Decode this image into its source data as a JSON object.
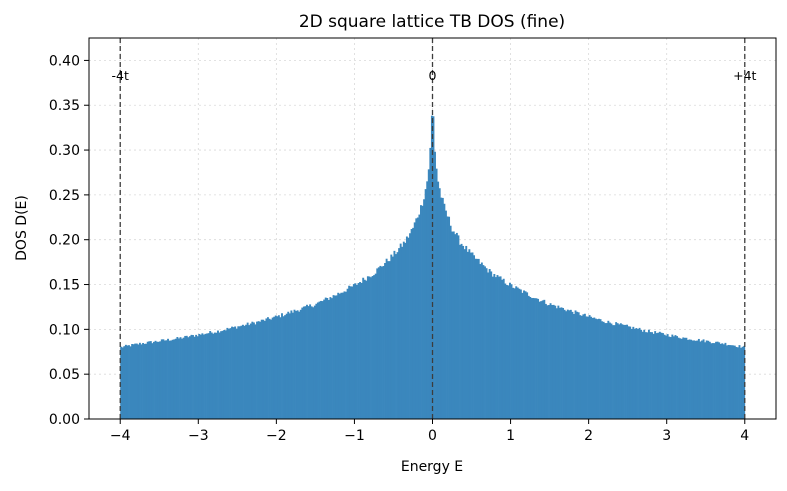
{
  "chart_data": {
    "type": "bar",
    "title": "2D square lattice TB DOS (fine)",
    "xlabel": "Energy E",
    "ylabel": "DOS D(E)",
    "xlim": [
      -4.4,
      4.4
    ],
    "ylim": [
      0,
      0.425
    ],
    "xticks": [
      -4,
      -3,
      -2,
      -1,
      0,
      1,
      2,
      3,
      4
    ],
    "xtick_labels": [
      "−4",
      "−3",
      "−2",
      "−1",
      "0",
      "1",
      "2",
      "3",
      "4"
    ],
    "yticks": [
      0.0,
      0.05,
      0.1,
      0.15,
      0.2,
      0.25,
      0.3,
      0.35,
      0.4
    ],
    "ytick_labels": [
      "0.00",
      "0.05",
      "0.10",
      "0.15",
      "0.20",
      "0.25",
      "0.30",
      "0.35",
      "0.40"
    ],
    "grid": true,
    "bar_color": "#3a87bd",
    "bin_width": 0.02,
    "histogram_profile": {
      "energy": [
        -4.0,
        -3.75,
        -3.5,
        -3.25,
        -3.0,
        -2.75,
        -2.5,
        -2.25,
        -2.0,
        -1.75,
        -1.5,
        -1.25,
        -1.0,
        -0.75,
        -0.5,
        -0.35,
        -0.25,
        -0.15,
        -0.1,
        -0.06,
        -0.03,
        0.0,
        0.03,
        0.06,
        0.1,
        0.15,
        0.25,
        0.35,
        0.5,
        0.75,
        1.0,
        1.25,
        1.5,
        1.75,
        2.0,
        2.25,
        2.5,
        2.75,
        3.0,
        3.25,
        3.5,
        3.75,
        4.0
      ],
      "density": [
        0.08,
        0.084,
        0.087,
        0.09,
        0.094,
        0.098,
        0.103,
        0.108,
        0.114,
        0.121,
        0.128,
        0.138,
        0.149,
        0.163,
        0.183,
        0.198,
        0.213,
        0.236,
        0.252,
        0.27,
        0.3,
        0.355,
        0.3,
        0.27,
        0.252,
        0.236,
        0.213,
        0.198,
        0.183,
        0.163,
        0.149,
        0.138,
        0.128,
        0.121,
        0.114,
        0.108,
        0.103,
        0.098,
        0.094,
        0.09,
        0.087,
        0.084,
        0.08
      ]
    },
    "reference_lines": [
      {
        "x": -4,
        "label": "-4t"
      },
      {
        "x": 0,
        "label": "0"
      },
      {
        "x": 4,
        "label": "+4t"
      }
    ]
  }
}
